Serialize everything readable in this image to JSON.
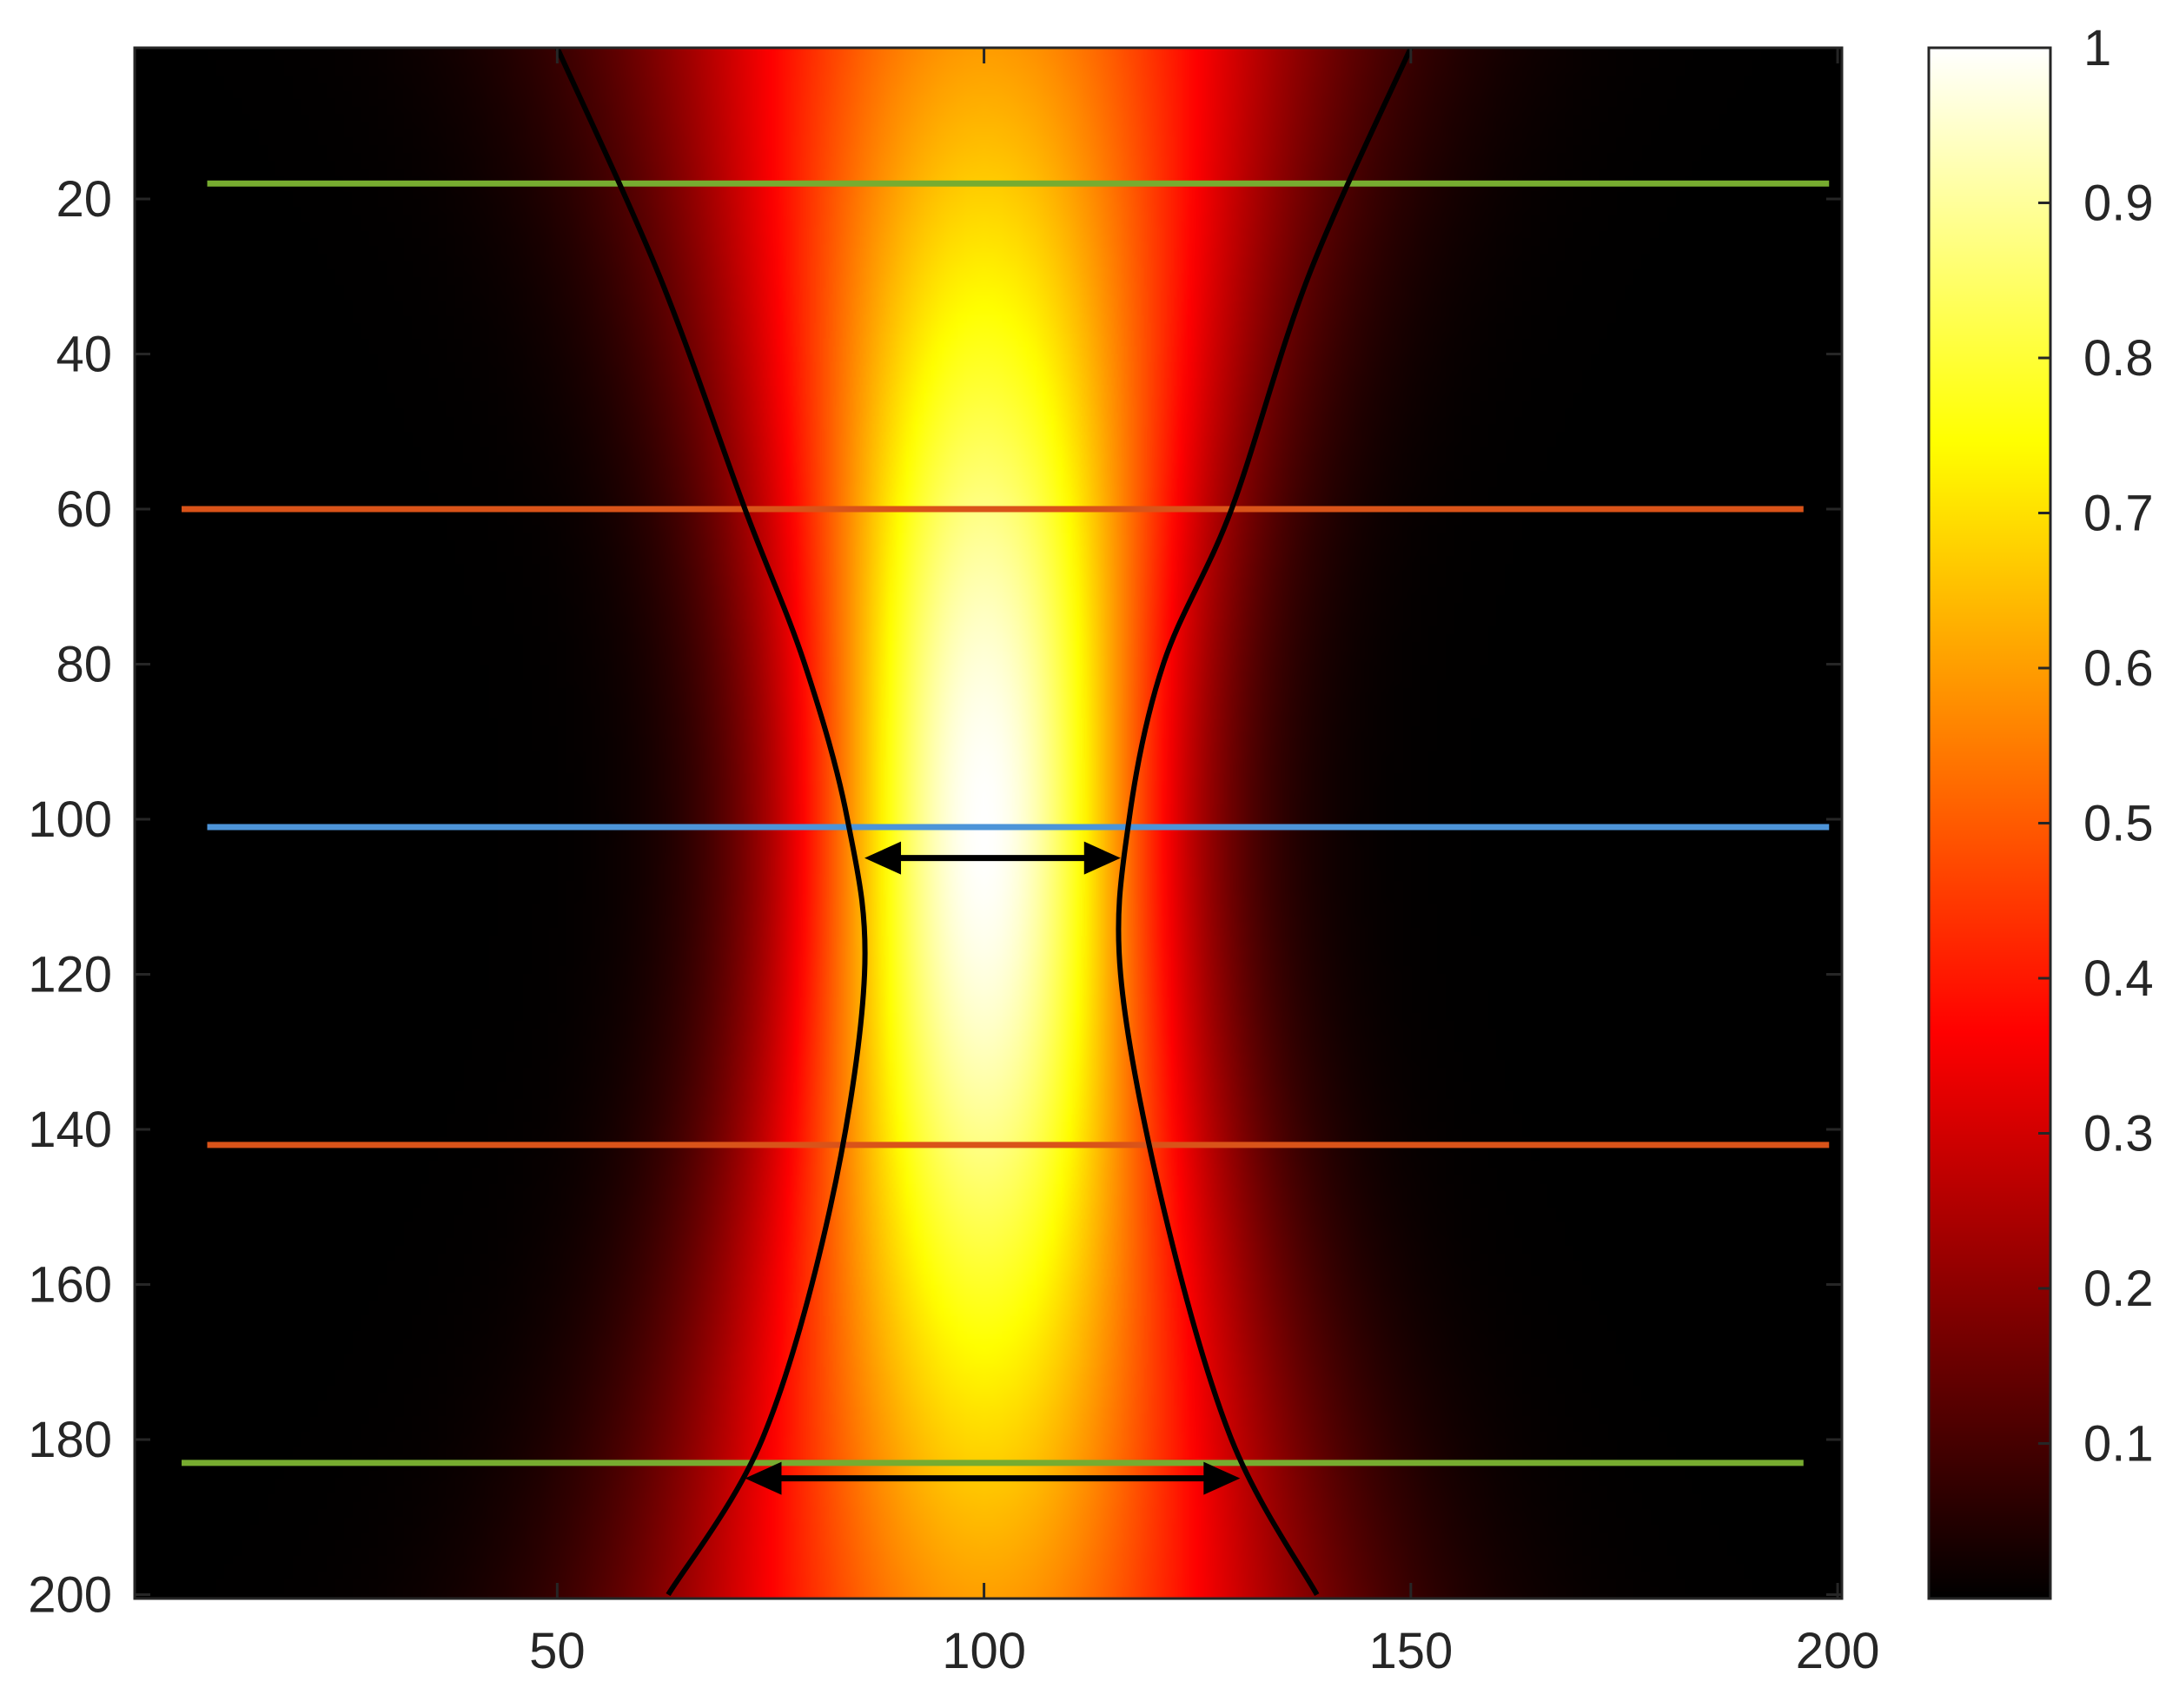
{
  "chart_data": {
    "type": "heatmap",
    "title": "",
    "xlabel": "",
    "ylabel": "",
    "xlim": [
      0.5,
      200.5
    ],
    "ylim": [
      0.5,
      200.5
    ],
    "y_direction": "reversed",
    "colormap": "hot",
    "clim": [
      0,
      1
    ],
    "x_ticks": [
      {
        "value": 50,
        "label": "50"
      },
      {
        "value": 100,
        "label": "100"
      },
      {
        "value": 150,
        "label": "150"
      },
      {
        "value": 200,
        "label": "200"
      }
    ],
    "y_ticks": [
      {
        "value": 20,
        "label": "20"
      },
      {
        "value": 40,
        "label": "40"
      },
      {
        "value": 60,
        "label": "60"
      },
      {
        "value": 80,
        "label": "80"
      },
      {
        "value": 100,
        "label": "100"
      },
      {
        "value": 120,
        "label": "120"
      },
      {
        "value": 140,
        "label": "140"
      },
      {
        "value": 160,
        "label": "160"
      },
      {
        "value": 180,
        "label": "180"
      },
      {
        "value": 200,
        "label": "200"
      }
    ],
    "colorbar_ticks": [
      {
        "value": 0.1,
        "label": "0.1"
      },
      {
        "value": 0.2,
        "label": "0.2"
      },
      {
        "value": 0.3,
        "label": "0.3"
      },
      {
        "value": 0.4,
        "label": "0.4"
      },
      {
        "value": 0.5,
        "label": "0.5"
      },
      {
        "value": 0.6,
        "label": "0.6"
      },
      {
        "value": 0.7,
        "label": "0.7"
      },
      {
        "value": 0.8,
        "label": "0.8"
      },
      {
        "value": 0.9,
        "label": "0.9"
      },
      {
        "value": 1,
        "label": "1"
      }
    ],
    "intensity_field": {
      "center_x": 100,
      "center_y": 101,
      "waist_width": 15,
      "rayleigh_length": 75,
      "peak": 1
    },
    "beam_edges": [
      {
        "side": "left",
        "points": [
          [
            50,
            0.5
          ],
          [
            62,
            30
          ],
          [
            72,
            60
          ],
          [
            79,
            80
          ],
          [
            84,
            100
          ],
          [
            86,
            120
          ],
          [
            82,
            150
          ],
          [
            74,
            180
          ],
          [
            63,
            200
          ]
        ]
      },
      {
        "side": "right",
        "points": [
          [
            150,
            0.5
          ],
          [
            138,
            30
          ],
          [
            129,
            60
          ],
          [
            121,
            80
          ],
          [
            117,
            100
          ],
          [
            116,
            120
          ],
          [
            121,
            150
          ],
          [
            129,
            180
          ],
          [
            139,
            200
          ]
        ]
      }
    ],
    "horizontal_lines": [
      {
        "y": 18,
        "x_start": 9,
        "x_end": 199,
        "color": "#77ac30"
      },
      {
        "y": 60,
        "x_start": 6,
        "x_end": 196,
        "color": "#d95319"
      },
      {
        "y": 101,
        "x_start": 9,
        "x_end": 199,
        "color": "#4d94d8"
      },
      {
        "y": 142,
        "x_start": 9,
        "x_end": 199,
        "color": "#d95319"
      },
      {
        "y": 183,
        "x_start": 6,
        "x_end": 196,
        "color": "#77ac30"
      }
    ],
    "arrows": [
      {
        "y": 105,
        "x_start": 86,
        "x_end": 116,
        "color": "#000000"
      },
      {
        "y": 185,
        "x_start": 72,
        "x_end": 130,
        "color": "#000000"
      }
    ]
  }
}
